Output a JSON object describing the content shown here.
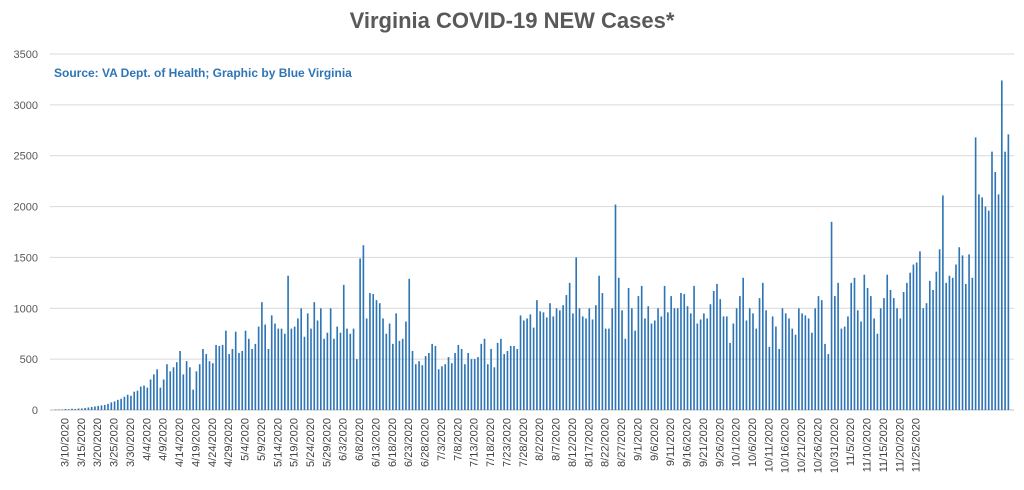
{
  "chart_data": {
    "type": "bar",
    "title": "Virginia COVID-19 NEW Cases*",
    "annotation": "Source: VA Dept. of Health; Graphic by Blue Virginia",
    "xlabel": "",
    "ylabel": "",
    "ylim": [
      0,
      3500
    ],
    "yticks": [
      0,
      500,
      1000,
      1500,
      2000,
      2500,
      3000,
      3500
    ],
    "grid": true,
    "bar_color": "#2E75B6",
    "x_tick_labels": [
      "3/10/2020",
      "3/15/2020",
      "3/20/2020",
      "3/25/2020",
      "3/30/2020",
      "4/4/2020",
      "4/9/2020",
      "4/14/2020",
      "4/19/2020",
      "4/24/2020",
      "4/29/2020",
      "5/4/2020",
      "5/9/2020",
      "5/14/2020",
      "5/19/2020",
      "5/24/2020",
      "5/29/2020",
      "6/3/2020",
      "6/8/2020",
      "6/13/2020",
      "6/18/2020",
      "6/23/2020",
      "6/28/2020",
      "7/3/2020",
      "7/8/2020",
      "7/13/2020",
      "7/18/2020",
      "7/23/2020",
      "7/28/2020",
      "8/2/2020",
      "8/7/2020",
      "8/12/2020",
      "8/17/2020",
      "8/22/2020",
      "8/27/2020",
      "9/1/2020",
      "9/6/2020",
      "9/11/2020",
      "9/16/2020",
      "9/21/2020",
      "9/26/2020",
      "10/1/2020",
      "10/6/2020",
      "10/11/2020",
      "10/16/2020",
      "10/21/2020",
      "10/26/2020",
      "10/31/2020",
      "11/5/2020",
      "11/10/2020",
      "11/15/2020",
      "11/20/2020",
      "11/25/2020"
    ],
    "start_date": "2020-03-07",
    "values": [
      5,
      5,
      5,
      10,
      8,
      12,
      10,
      15,
      15,
      20,
      25,
      30,
      35,
      40,
      45,
      50,
      60,
      75,
      85,
      100,
      110,
      130,
      150,
      140,
      180,
      190,
      230,
      240,
      220,
      300,
      350,
      400,
      220,
      300,
      450,
      380,
      420,
      470,
      580,
      350,
      480,
      420,
      200,
      380,
      450,
      600,
      550,
      480,
      460,
      640,
      630,
      640,
      780,
      550,
      600,
      770,
      560,
      580,
      780,
      700,
      600,
      650,
      820,
      1060,
      840,
      600,
      930,
      850,
      800,
      800,
      750,
      1320,
      800,
      820,
      900,
      1000,
      720,
      950,
      800,
      1060,
      880,
      1000,
      700,
      760,
      1000,
      700,
      820,
      760,
      1230,
      800,
      750,
      800,
      500,
      1490,
      1620,
      900,
      1150,
      1140,
      1080,
      1050,
      900,
      750,
      850,
      650,
      950,
      680,
      700,
      870,
      1290,
      580,
      450,
      480,
      440,
      530,
      560,
      650,
      630,
      400,
      430,
      450,
      520,
      460,
      560,
      640,
      600,
      450,
      560,
      500,
      500,
      520,
      650,
      700,
      450,
      600,
      420,
      660,
      700,
      550,
      580,
      630,
      630,
      600,
      930,
      880,
      900,
      940,
      810,
      1080,
      970,
      960,
      910,
      1050,
      920,
      1000,
      980,
      1030,
      1130,
      1250,
      950,
      1500,
      1000,
      920,
      900,
      1000,
      890,
      1030,
      1320,
      1150,
      800,
      800,
      1000,
      2020,
      1300,
      980,
      700,
      1200,
      1000,
      780,
      1120,
      1220,
      900,
      1020,
      850,
      880,
      1000,
      920,
      1220,
      960,
      1120,
      1000,
      1000,
      1150,
      1140,
      1020,
      950,
      1220,
      850,
      890,
      950,
      900,
      1040,
      1170,
      1240,
      1090,
      920,
      920,
      660,
      850,
      1000,
      1120,
      1300,
      880,
      1000,
      950,
      800,
      1100,
      1250,
      980,
      620,
      920,
      820,
      600,
      1000,
      950,
      900,
      800,
      740,
      1000,
      950,
      930,
      900,
      760,
      1000,
      1120,
      1080,
      650,
      550,
      1850,
      1120,
      1250,
      800,
      820,
      920,
      1250,
      1300,
      980,
      870,
      1330,
      1200,
      1120,
      900,
      750,
      1000,
      1100,
      1330,
      1180,
      1100,
      1000,
      900,
      1160,
      1250,
      1350,
      1430,
      1450,
      1560,
      1000,
      1050,
      1270,
      1180,
      1360,
      1580,
      2110,
      1250,
      1320,
      1300,
      1430,
      1600,
      1520,
      1240,
      1530,
      1300,
      2680,
      2120,
      2090,
      2000,
      1960,
      2540,
      2340,
      2120,
      3240,
      2540,
      2710
    ]
  }
}
